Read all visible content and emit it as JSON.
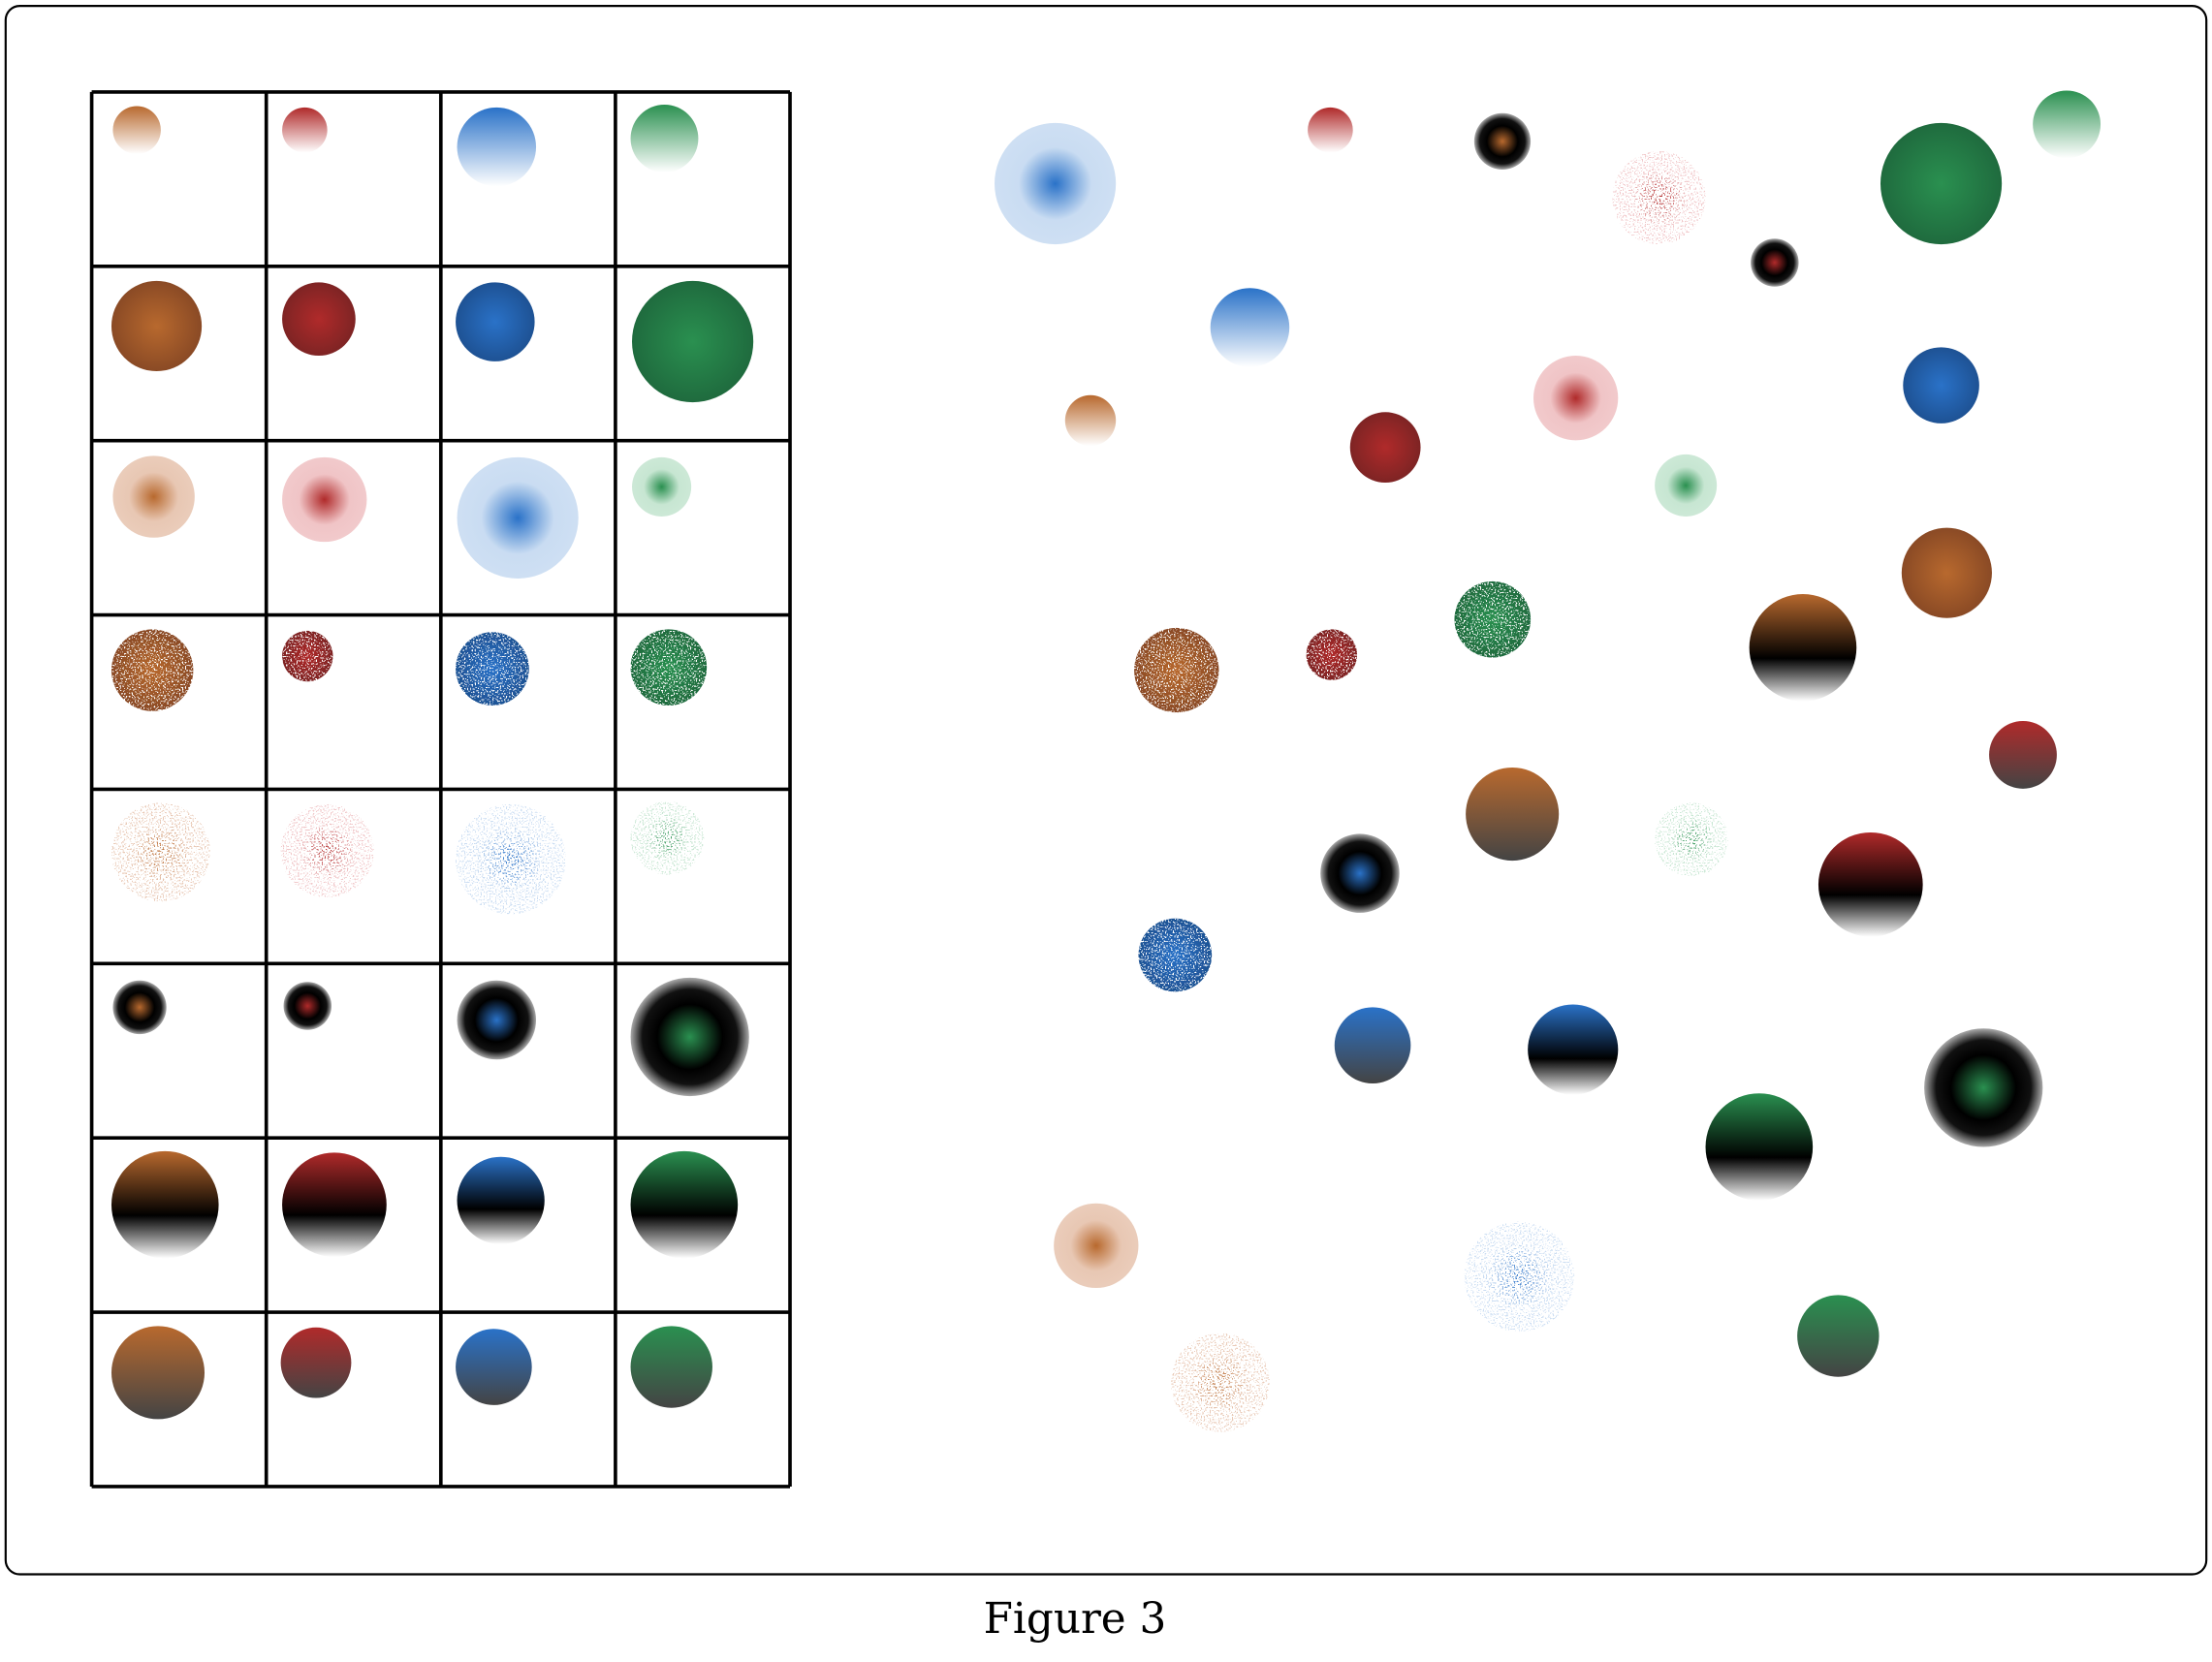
{
  "caption": "Figure 3"
}
